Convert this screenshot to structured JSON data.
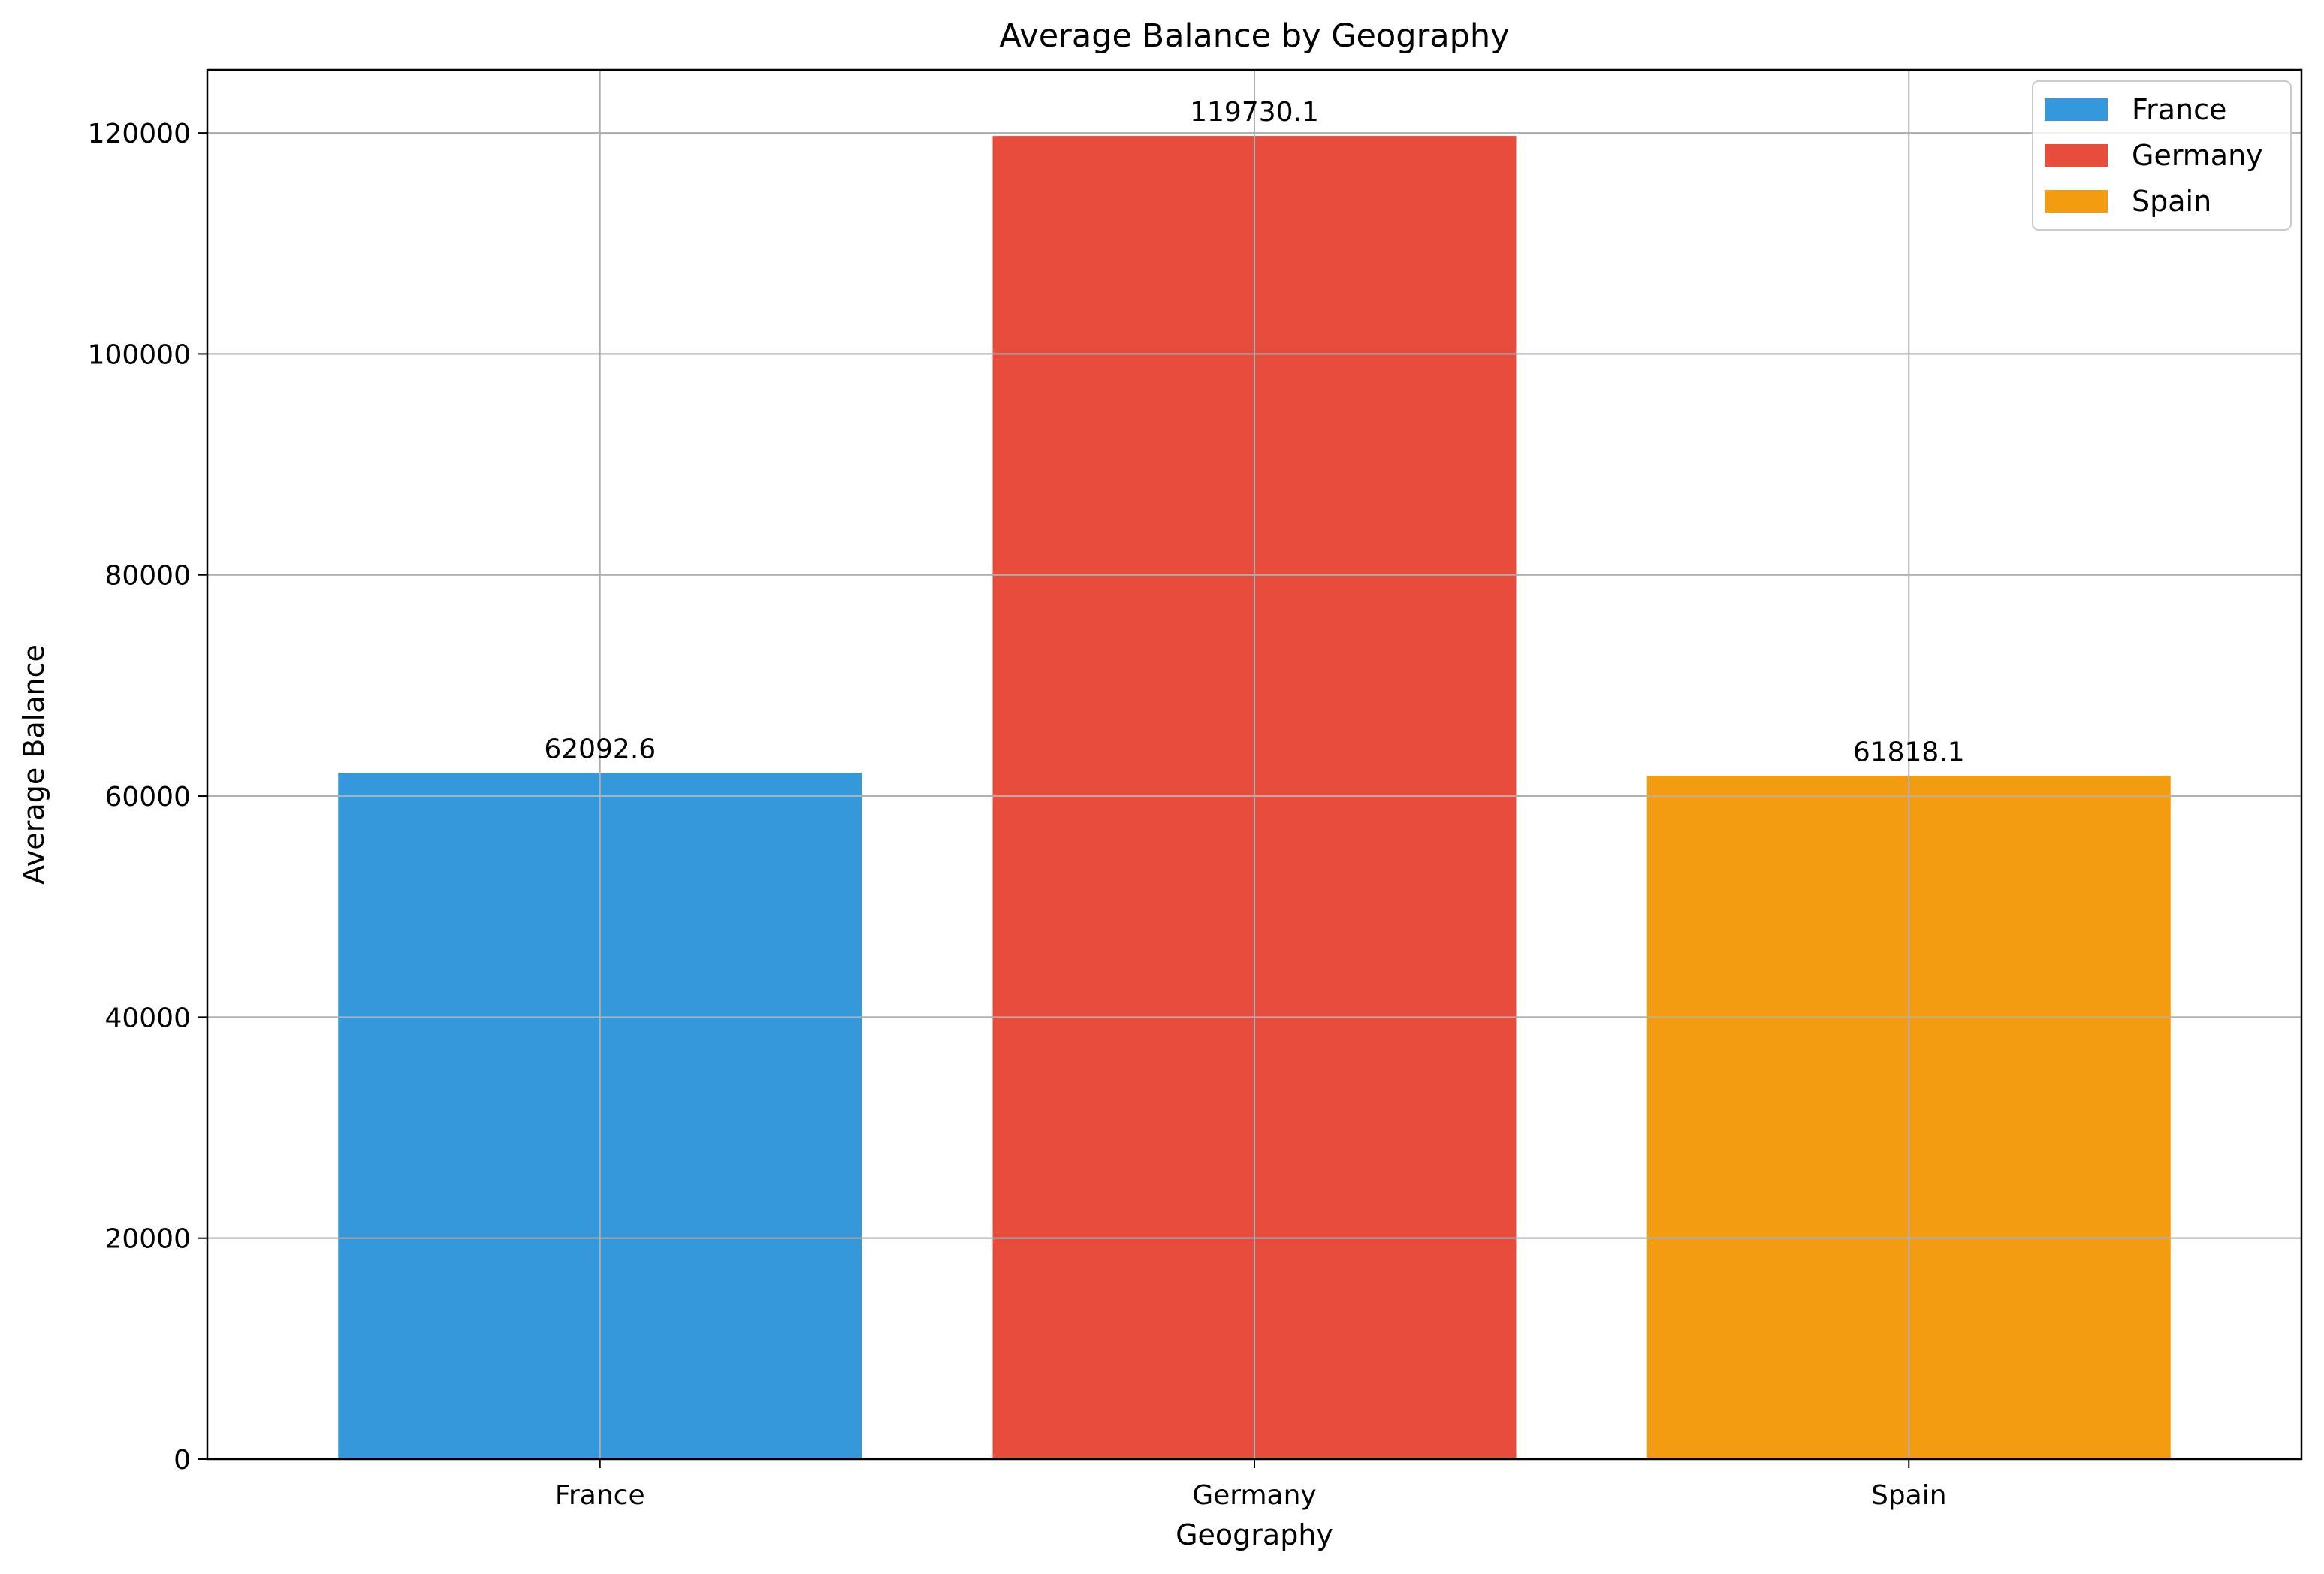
{
  "chart_data": {
    "type": "bar",
    "title": "Average Balance by Geography",
    "xlabel": "Geography",
    "ylabel": "Average Balance",
    "categories": [
      "France",
      "Germany",
      "Spain"
    ],
    "values": [
      62092.6,
      119730.1,
      61818.1
    ],
    "value_labels": [
      "62092.6",
      "119730.1",
      "61818.1"
    ],
    "colors": [
      "#3498db",
      "#e74c3c",
      "#f39c12"
    ],
    "ylim": [
      0,
      125715.6
    ],
    "yticks": [
      0,
      20000,
      40000,
      60000,
      80000,
      100000,
      120000
    ],
    "ytick_labels": [
      "0",
      "20000",
      "40000",
      "60000",
      "80000",
      "100000",
      "120000"
    ],
    "grid": true,
    "legend": {
      "placement": "top-right",
      "entries": [
        "France",
        "Germany",
        "Spain"
      ]
    }
  }
}
